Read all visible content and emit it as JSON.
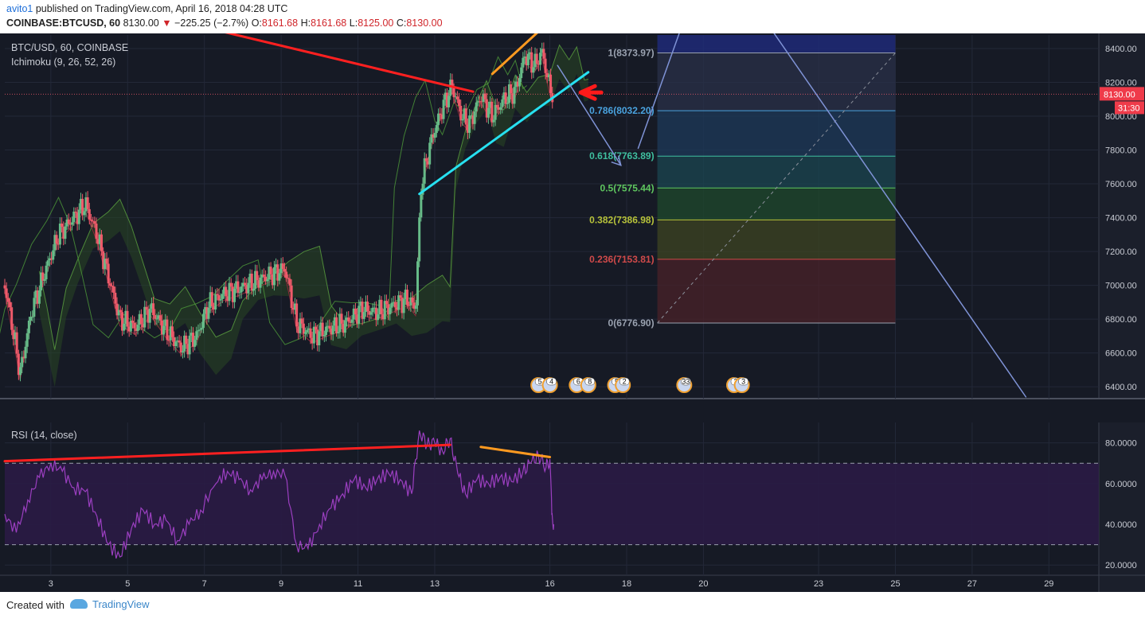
{
  "header": {
    "user": "avito1",
    "published": " published on TradingView.com, April 16, 2018 04:28 UTC",
    "symbol": "COINBASE:BTCUSD, 60",
    "last": "8130.00",
    "change": "−225.25 (−2.7%)",
    "o_label": "O:",
    "o": "8161.68",
    "h_label": "H:",
    "h": "8161.68",
    "l_label": "L:",
    "l": "8125.00",
    "c_label": "C:",
    "c": "8130.00"
  },
  "chart_data": [
    {
      "type": "candlestick",
      "title": "BTC/USD, 60, COINBASE",
      "indicator": "Ichimoku (9, 26, 52, 26)",
      "ylim": [
        6330,
        8480
      ],
      "yticks": [
        6400,
        6600,
        6800,
        7000,
        7200,
        7400,
        7600,
        7800,
        8000,
        8200,
        8400
      ],
      "ytick_labels": [
        "6400.00",
        "6600.00",
        "6800.00",
        "7000.00",
        "7200.00",
        "7400.00",
        "7600.00",
        "7800.00",
        "8000.00",
        "8200.00",
        "8400.00"
      ],
      "xlim": [
        1.8,
        30.3
      ],
      "xticks": [
        3,
        5,
        7,
        9,
        11,
        13,
        16,
        18,
        20,
        23,
        25,
        27,
        29
      ],
      "xtick_labels": [
        "3",
        "5",
        "7",
        "9",
        "11",
        "13",
        "16",
        "18",
        "20",
        "23",
        "25",
        "27",
        "29"
      ],
      "price_path": [
        [
          1.8,
          7000
        ],
        [
          2.0,
          6750
        ],
        [
          2.2,
          6480
        ],
        [
          2.5,
          6850
        ],
        [
          2.8,
          7050
        ],
        [
          3.2,
          7300
        ],
        [
          3.6,
          7400
        ],
        [
          3.9,
          7480
        ],
        [
          4.2,
          7300
        ],
        [
          4.5,
          7050
        ],
        [
          4.8,
          6800
        ],
        [
          5.2,
          6750
        ],
        [
          5.6,
          6860
        ],
        [
          6.0,
          6730
        ],
        [
          6.4,
          6630
        ],
        [
          6.8,
          6700
        ],
        [
          7.1,
          6880
        ],
        [
          7.5,
          6950
        ],
        [
          7.9,
          6980
        ],
        [
          8.3,
          7020
        ],
        [
          8.7,
          7060
        ],
        [
          9.1,
          7100
        ],
        [
          9.4,
          6780
        ],
        [
          9.8,
          6700
        ],
        [
          10.2,
          6740
        ],
        [
          10.7,
          6780
        ],
        [
          11.1,
          6860
        ],
        [
          11.5,
          6840
        ],
        [
          11.9,
          6880
        ],
        [
          12.3,
          6920
        ],
        [
          12.5,
          6860
        ],
        [
          12.65,
          7600
        ],
        [
          12.9,
          7850
        ],
        [
          13.2,
          8050
        ],
        [
          13.45,
          8180
        ],
        [
          13.7,
          8000
        ],
        [
          13.9,
          7950
        ],
        [
          14.2,
          8120
        ],
        [
          14.5,
          8000
        ],
        [
          14.8,
          8100
        ],
        [
          15.1,
          8150
        ],
        [
          15.35,
          8360
        ],
        [
          15.6,
          8300
        ],
        [
          15.8,
          8380
        ],
        [
          16.0,
          8161.68
        ],
        [
          16.1,
          8130
        ]
      ],
      "last_price": 8130.0,
      "last_price_label": "8130.00",
      "countdown": "31:30",
      "fibonacci": {
        "levels": [
          {
            "ratio_label": "1",
            "value": 8373.97,
            "label": "1(8373.97)",
            "color": "#9aa2b0"
          },
          {
            "ratio_label": "0.786",
            "value": 8032.2,
            "label": "0.786(8032.20)",
            "color": "#4aa3df"
          },
          {
            "ratio_label": "0.618",
            "value": 7763.89,
            "label": "0.618(7763.89)",
            "color": "#3fbf9f"
          },
          {
            "ratio_label": "0.5",
            "value": 7575.44,
            "label": "0.5(7575.44)",
            "color": "#5fc65f"
          },
          {
            "ratio_label": "0.382",
            "value": 7386.98,
            "label": "0.382(7386.98)",
            "color": "#b7c23a"
          },
          {
            "ratio_label": "0.236",
            "value": 7153.81,
            "label": "0.236(7153.81)",
            "color": "#d04a4a"
          },
          {
            "ratio_label": "0",
            "value": 6776.9,
            "label": "0(6776.90)",
            "color": "#9aa2b0"
          }
        ],
        "x_range": [
          18.8,
          25.0
        ]
      },
      "trendlines": [
        {
          "color": "#ff2020",
          "points": [
            [
              6.0,
              8580
            ],
            [
              14.0,
              8145
            ]
          ]
        },
        {
          "color": "#27e0f0",
          "points": [
            [
              12.6,
              7540
            ],
            [
              17.0,
              8260
            ]
          ]
        },
        {
          "color": "#ff9a20",
          "points": [
            [
              14.5,
              8250
            ],
            [
              15.7,
              8500
            ]
          ]
        },
        {
          "color": "#7f93d6",
          "points": [
            [
              16.2,
              8300
            ],
            [
              17.85,
              7710
            ]
          ]
        },
        {
          "color": "#7f93d6",
          "points": [
            [
              18.3,
              7810
            ],
            [
              19.7,
              8700
            ]
          ]
        },
        {
          "color": "#7f93d6",
          "points": [
            [
              21.2,
              8700
            ],
            [
              28.4,
              6340
            ]
          ]
        }
      ],
      "events": [
        {
          "x": 15.7,
          "label": "5"
        },
        {
          "x": 16.0,
          "label": "4"
        },
        {
          "x": 16.7,
          "label": "6"
        },
        {
          "x": 17.0,
          "label": "8"
        },
        {
          "x": 17.7,
          "label": "5"
        },
        {
          "x": 17.9,
          "label": "2"
        },
        {
          "x": 19.5,
          "label": "33"
        },
        {
          "x": 20.8,
          "label": "2"
        },
        {
          "x": 21.0,
          "label": "3"
        }
      ]
    },
    {
      "type": "line",
      "title": "RSI (14, close)",
      "ylim": [
        15,
        90
      ],
      "yticks": [
        20,
        40,
        60,
        80
      ],
      "ytick_labels": [
        "20.0000",
        "40.0000",
        "60.0000",
        "80.0000"
      ],
      "bands": [
        30,
        70
      ],
      "series": [
        {
          "values": [
            [
              1.8,
              45
            ],
            [
              2.1,
              36
            ],
            [
              2.4,
              52
            ],
            [
              2.7,
              63
            ],
            [
              3.0,
              70
            ],
            [
              3.3,
              66
            ],
            [
              3.6,
              58
            ],
            [
              3.9,
              56
            ],
            [
              4.2,
              44
            ],
            [
              4.5,
              30
            ],
            [
              4.8,
              24
            ],
            [
              5.1,
              38
            ],
            [
              5.4,
              47
            ],
            [
              5.7,
              40
            ],
            [
              6.0,
              42
            ],
            [
              6.3,
              32
            ],
            [
              6.6,
              40
            ],
            [
              6.9,
              47
            ],
            [
              7.3,
              60
            ],
            [
              7.6,
              66
            ],
            [
              7.9,
              62
            ],
            [
              8.2,
              57
            ],
            [
              8.5,
              62
            ],
            [
              8.8,
              66
            ],
            [
              9.1,
              64
            ],
            [
              9.4,
              30
            ],
            [
              9.7,
              28
            ],
            [
              10.0,
              40
            ],
            [
              10.3,
              48
            ],
            [
              10.6,
              55
            ],
            [
              10.9,
              62
            ],
            [
              11.2,
              58
            ],
            [
              11.5,
              62
            ],
            [
              11.8,
              65
            ],
            [
              12.1,
              62
            ],
            [
              12.4,
              55
            ],
            [
              12.6,
              86
            ],
            [
              12.8,
              79
            ],
            [
              13.0,
              80
            ],
            [
              13.2,
              76
            ],
            [
              13.4,
              82
            ],
            [
              13.6,
              65
            ],
            [
              13.8,
              55
            ],
            [
              14.1,
              62
            ],
            [
              14.4,
              60
            ],
            [
              14.7,
              63
            ],
            [
              15.0,
              61
            ],
            [
              15.3,
              66
            ],
            [
              15.5,
              70
            ],
            [
              15.7,
              74
            ],
            [
              15.9,
              68
            ],
            [
              16.0,
              72
            ],
            [
              16.05,
              45
            ],
            [
              16.1,
              40
            ]
          ]
        }
      ],
      "trendlines": [
        {
          "color": "#ff2020",
          "points": [
            [
              1.8,
              71
            ],
            [
              13.4,
              79
            ]
          ]
        },
        {
          "color": "#ff9a20",
          "points": [
            [
              14.2,
              78
            ],
            [
              16.0,
              73
            ]
          ]
        }
      ]
    }
  ],
  "footer": {
    "created": "Created with",
    "brand": "TradingView"
  }
}
